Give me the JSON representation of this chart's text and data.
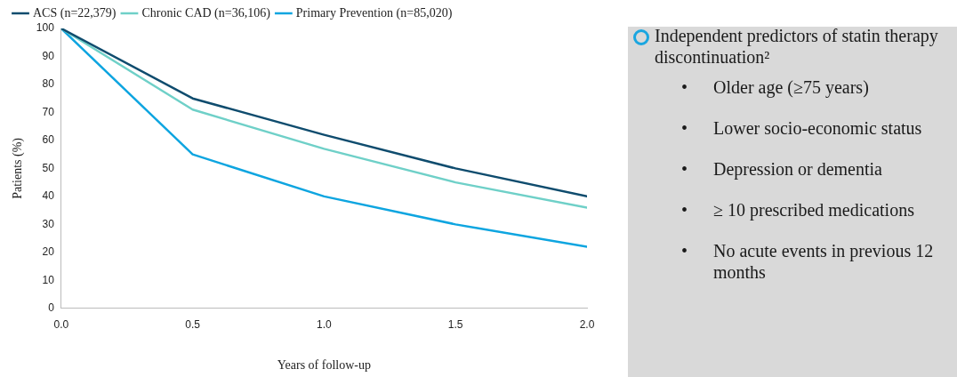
{
  "chart_data": [
    {
      "type": "line",
      "xlabel": "Years of follow-up",
      "ylabel": "Patients (%)",
      "x": [
        0,
        0.5,
        1,
        1.5,
        2
      ],
      "series": [
        {
          "name": "ACS (n=22,379)",
          "color": "#0f4c6e",
          "values": [
            100,
            75,
            62,
            50,
            40
          ]
        },
        {
          "name": "Chronic CAD (n=36,106)",
          "color": "#6fd0c8",
          "values": [
            100,
            71,
            57,
            45,
            36
          ]
        },
        {
          "name": "Primary Prevention (n=85,020)",
          "color": "#0ea5e0",
          "values": [
            100,
            55,
            40,
            30,
            22
          ]
        }
      ],
      "xlim": [
        0,
        2
      ],
      "xticks": [
        {
          "value": 0,
          "label": "0.0"
        },
        {
          "value": 0.5,
          "label": "0.5"
        },
        {
          "value": 1,
          "label": "1.0"
        },
        {
          "value": 1.5,
          "label": "1.5"
        },
        {
          "value": 2,
          "label": "2.0"
        }
      ],
      "ylim": [
        0,
        100
      ],
      "yticks": [
        0,
        10,
        20,
        30,
        40,
        50,
        60,
        70,
        80,
        90,
        100
      ],
      "legend": "top left",
      "marker": "none",
      "line_style": "solid"
    },
    {
      "type": "other",
      "title": "Independent predictors of statin therapy discontinuation²",
      "annotations": [
        "• Older age (≥75 years)",
        "• Lower socio-economic status",
        "• Depression or dementia",
        "• ≥ 10 prescribed medications",
        "• No acute events in previous 12 months"
      ]
    }
  ]
}
